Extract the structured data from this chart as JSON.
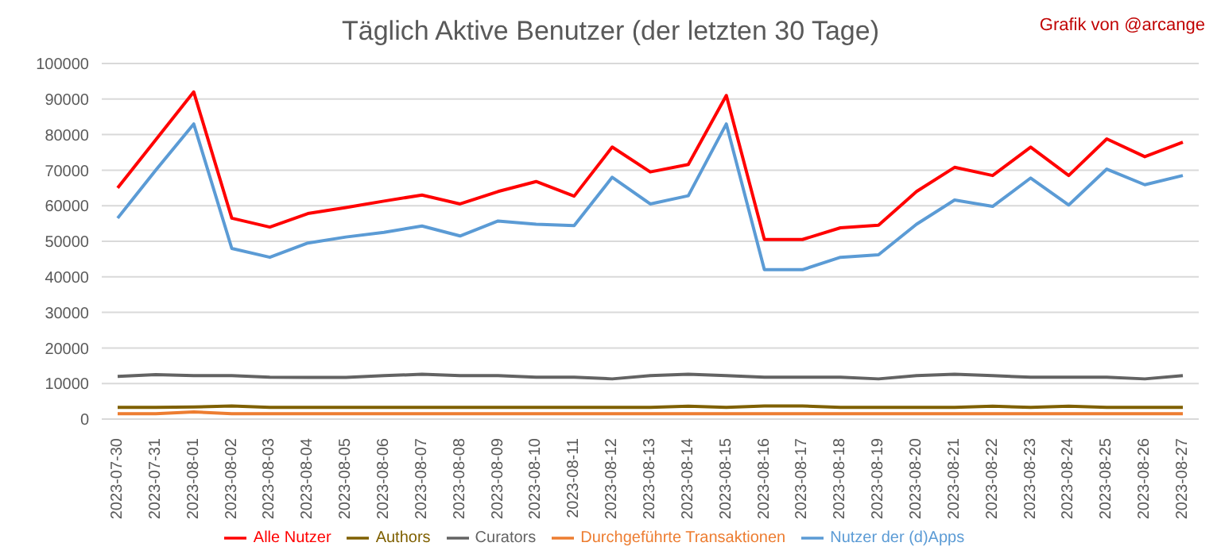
{
  "chart_data": {
    "type": "line",
    "title": "Täglich Aktive Benutzer (der letzten 30 Tage)",
    "annotations": [
      "Grafik von @arcange"
    ],
    "categories": [
      "2023-07-30",
      "2023-07-31",
      "2023-08-01",
      "2023-08-02",
      "2023-08-03",
      "2023-08-04",
      "2023-08-05",
      "2023-08-06",
      "2023-08-07",
      "2023-08-08",
      "2023-08-09",
      "2023-08-10",
      "2023-08-11",
      "2023-08-12",
      "2023-08-13",
      "2023-08-14",
      "2023-08-15",
      "2023-08-16",
      "2023-08-17",
      "2023-08-18",
      "2023-08-19",
      "2023-08-20",
      "2023-08-21",
      "2023-08-22",
      "2023-08-23",
      "2023-08-24",
      "2023-08-25",
      "2023-08-26",
      "2023-08-27"
    ],
    "series": [
      {
        "name": "Alle Nutzer",
        "color": "#ff0000",
        "values": [
          65000,
          78500,
          92000,
          56500,
          54000,
          57800,
          59500,
          61300,
          63000,
          60500,
          64000,
          66800,
          62700,
          76500,
          69500,
          71600,
          91000,
          50500,
          50500,
          53800,
          54500,
          64000,
          70800,
          68500,
          76500,
          68500,
          78800,
          73800,
          77900
        ]
      },
      {
        "name": "Nutzer der (d)Apps",
        "color": "#5b9bd5",
        "values": [
          56500,
          70000,
          83000,
          48000,
          45500,
          49500,
          51200,
          52500,
          54300,
          51500,
          55700,
          54800,
          54400,
          68000,
          60500,
          62800,
          83000,
          42000,
          42000,
          45500,
          46200,
          54800,
          61600,
          59800,
          67800,
          60200,
          70300,
          65900,
          68500
        ]
      },
      {
        "name": "Authors",
        "color": "#7f6000",
        "values": [
          3300,
          3300,
          3400,
          3700,
          3300,
          3300,
          3300,
          3300,
          3300,
          3300,
          3300,
          3300,
          3300,
          3300,
          3300,
          3600,
          3300,
          3700,
          3700,
          3300,
          3300,
          3300,
          3300,
          3600,
          3300,
          3600,
          3300,
          3300,
          3300
        ]
      },
      {
        "name": "Curators",
        "color": "#636363",
        "values": [
          12000,
          12500,
          12200,
          12200,
          11800,
          11700,
          11700,
          12200,
          12600,
          12200,
          12200,
          11800,
          11800,
          11300,
          12200,
          12600,
          12200,
          11800,
          11800,
          11800,
          11300,
          12200,
          12600,
          12200,
          11800,
          11800,
          11800,
          11300,
          12200
        ]
      },
      {
        "name": "Durchgeführte Transaktionen",
        "color": "#ed7d31",
        "values": [
          1500,
          1500,
          2000,
          1500,
          1500,
          1500,
          1500,
          1500,
          1500,
          1500,
          1500,
          1500,
          1500,
          1500,
          1500,
          1500,
          1500,
          1500,
          1500,
          1500,
          1500,
          1500,
          1500,
          1500,
          1500,
          1500,
          1500,
          1500,
          1500
        ]
      }
    ],
    "ylim": [
      0,
      100000
    ],
    "yticks": [
      0,
      10000,
      20000,
      30000,
      40000,
      50000,
      60000,
      70000,
      80000,
      90000,
      100000
    ],
    "grid": "y",
    "legend": "bottom",
    "marker": "none",
    "line_style": "solid"
  }
}
